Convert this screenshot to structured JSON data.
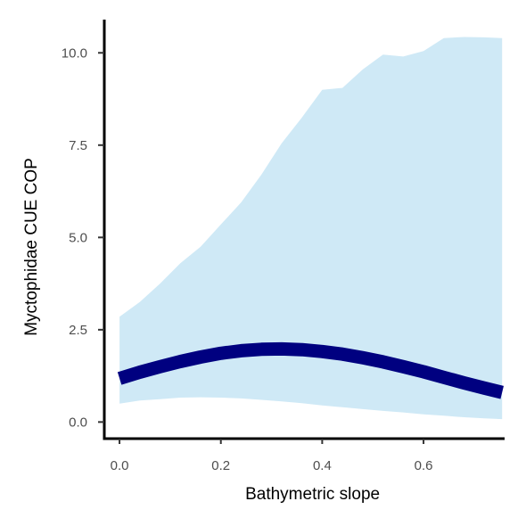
{
  "chart_data": {
    "type": "line",
    "title": "",
    "xlabel": "Bathymetric slope",
    "ylabel": "Myctophidae  CUE COP",
    "xlim": [
      -0.03,
      0.76
    ],
    "ylim": [
      -0.45,
      10.9
    ],
    "x_ticks": [
      0.0,
      0.2,
      0.4,
      0.6
    ],
    "x_tick_labels": [
      "0.0",
      "0.2",
      "0.4",
      "0.6"
    ],
    "y_ticks": [
      0.0,
      2.5,
      5.0,
      7.5,
      10.0
    ],
    "y_tick_labels": [
      "0.0",
      "2.5",
      "5.0",
      "7.5",
      "10.0"
    ],
    "grid": false,
    "legend": "none",
    "colors": {
      "line": "#000080",
      "ribbon": "#cfe9f6",
      "axis": "#000000",
      "tick_text": "#4d4d4d"
    },
    "series": [
      {
        "kind": "ribbon",
        "x": [
          0.0,
          0.04,
          0.08,
          0.12,
          0.16,
          0.2,
          0.24,
          0.28,
          0.32,
          0.36,
          0.4,
          0.44,
          0.48,
          0.52,
          0.56,
          0.6,
          0.64,
          0.68,
          0.72,
          0.755
        ],
        "lower": [
          0.5,
          0.58,
          0.62,
          0.66,
          0.67,
          0.66,
          0.64,
          0.6,
          0.56,
          0.51,
          0.45,
          0.4,
          0.35,
          0.3,
          0.26,
          0.21,
          0.17,
          0.13,
          0.1,
          0.08
        ],
        "upper": [
          2.85,
          3.25,
          3.75,
          4.3,
          4.75,
          5.35,
          5.95,
          6.7,
          7.55,
          8.25,
          9.0,
          9.05,
          9.55,
          9.95,
          9.9,
          10.05,
          10.4,
          10.43,
          10.42,
          10.4
        ]
      },
      {
        "kind": "line",
        "x": [
          0.0,
          0.04,
          0.08,
          0.12,
          0.16,
          0.2,
          0.24,
          0.28,
          0.32,
          0.36,
          0.4,
          0.44,
          0.48,
          0.52,
          0.56,
          0.6,
          0.64,
          0.68,
          0.72,
          0.755
        ],
        "y": [
          1.18,
          1.35,
          1.5,
          1.64,
          1.76,
          1.86,
          1.93,
          1.97,
          1.98,
          1.96,
          1.91,
          1.84,
          1.74,
          1.63,
          1.5,
          1.36,
          1.21,
          1.06,
          0.92,
          0.8
        ]
      }
    ]
  }
}
